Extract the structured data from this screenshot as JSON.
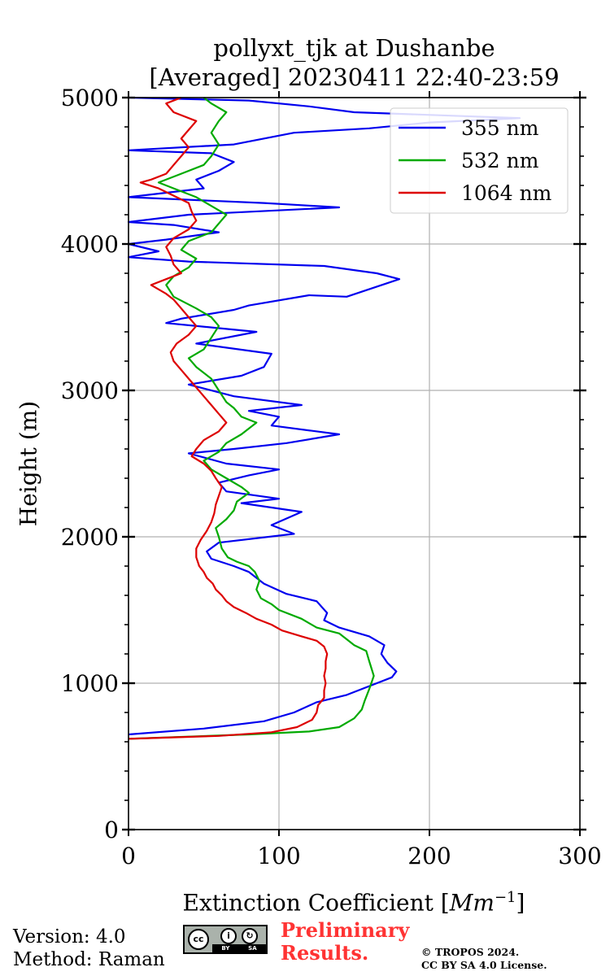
{
  "chart_data": {
    "type": "line",
    "title": [
      "pollyxt_tjk at Dushanbe",
      "[Averaged] 20230411 22:40-23:59"
    ],
    "xlabel": "Extinction Coefficient [",
    "xlabel_unit": "Mm",
    "xlabel_exp": "−1",
    "xlabel_close": "]",
    "ylabel": "Height (m)",
    "xlim": [
      0,
      300
    ],
    "ylim": [
      0,
      5000
    ],
    "xticks": [
      "0",
      "100",
      "200",
      "300"
    ],
    "yticks": [
      "0",
      "1000",
      "2000",
      "3000",
      "4000",
      "5000"
    ],
    "grid": true,
    "legend_position": "top-right",
    "series": [
      {
        "name": "355 nm",
        "color": "#0000ee",
        "points": [
          [
            0,
            650
          ],
          [
            50,
            690
          ],
          [
            90,
            740
          ],
          [
            110,
            800
          ],
          [
            125,
            870
          ],
          [
            145,
            920
          ],
          [
            160,
            980
          ],
          [
            175,
            1040
          ],
          [
            178,
            1080
          ],
          [
            172,
            1140
          ],
          [
            168,
            1200
          ],
          [
            170,
            1260
          ],
          [
            160,
            1320
          ],
          [
            140,
            1380
          ],
          [
            130,
            1430
          ],
          [
            132,
            1480
          ],
          [
            125,
            1560
          ],
          [
            105,
            1610
          ],
          [
            90,
            1680
          ],
          [
            80,
            1760
          ],
          [
            70,
            1800
          ],
          [
            55,
            1850
          ],
          [
            52,
            1900
          ],
          [
            60,
            1960
          ],
          [
            110,
            2020
          ],
          [
            95,
            2080
          ],
          [
            115,
            2170
          ],
          [
            75,
            2230
          ],
          [
            100,
            2260
          ],
          [
            65,
            2310
          ],
          [
            60,
            2370
          ],
          [
            80,
            2420
          ],
          [
            100,
            2460
          ],
          [
            65,
            2500
          ],
          [
            40,
            2570
          ],
          [
            70,
            2600
          ],
          [
            105,
            2640
          ],
          [
            140,
            2700
          ],
          [
            95,
            2760
          ],
          [
            100,
            2820
          ],
          [
            80,
            2860
          ],
          [
            115,
            2900
          ],
          [
            70,
            2960
          ],
          [
            40,
            3040
          ],
          [
            75,
            3100
          ],
          [
            90,
            3160
          ],
          [
            95,
            3250
          ],
          [
            45,
            3320
          ],
          [
            85,
            3400
          ],
          [
            25,
            3460
          ],
          [
            35,
            3490
          ],
          [
            70,
            3550
          ],
          [
            80,
            3580
          ],
          [
            120,
            3650
          ],
          [
            145,
            3640
          ],
          [
            180,
            3760
          ],
          [
            165,
            3800
          ],
          [
            130,
            3850
          ],
          [
            40,
            3880
          ],
          [
            0,
            3910
          ],
          [
            20,
            3950
          ],
          [
            0,
            4000
          ],
          [
            25,
            4030
          ],
          [
            60,
            4080
          ],
          [
            30,
            4130
          ],
          [
            0,
            4150
          ],
          [
            40,
            4200
          ],
          [
            140,
            4250
          ],
          [
            90,
            4280
          ],
          [
            0,
            4320
          ],
          [
            50,
            4380
          ],
          [
            45,
            4440
          ],
          [
            60,
            4500
          ],
          [
            70,
            4560
          ],
          [
            55,
            4620
          ],
          [
            0,
            4640
          ],
          [
            70,
            4680
          ],
          [
            110,
            4760
          ],
          [
            160,
            4790
          ],
          [
            200,
            4830
          ],
          [
            260,
            4860
          ],
          [
            150,
            4900
          ],
          [
            120,
            4940
          ],
          [
            80,
            4980
          ],
          [
            0,
            5000
          ]
        ]
      },
      {
        "name": "532 nm",
        "color": "#00aa00",
        "points": [
          [
            0,
            620
          ],
          [
            80,
            650
          ],
          [
            120,
            670
          ],
          [
            140,
            700
          ],
          [
            150,
            760
          ],
          [
            155,
            820
          ],
          [
            157,
            880
          ],
          [
            160,
            960
          ],
          [
            163,
            1050
          ],
          [
            160,
            1150
          ],
          [
            158,
            1220
          ],
          [
            150,
            1260
          ],
          [
            145,
            1300
          ],
          [
            140,
            1340
          ],
          [
            125,
            1380
          ],
          [
            115,
            1440
          ],
          [
            100,
            1500
          ],
          [
            95,
            1540
          ],
          [
            88,
            1580
          ],
          [
            85,
            1640
          ],
          [
            87,
            1700
          ],
          [
            84,
            1760
          ],
          [
            80,
            1800
          ],
          [
            72,
            1830
          ],
          [
            66,
            1860
          ],
          [
            62,
            1920
          ],
          [
            60,
            2000
          ],
          [
            58,
            2060
          ],
          [
            65,
            2120
          ],
          [
            70,
            2180
          ],
          [
            72,
            2240
          ],
          [
            80,
            2300
          ],
          [
            75,
            2340
          ],
          [
            65,
            2400
          ],
          [
            55,
            2460
          ],
          [
            50,
            2520
          ],
          [
            60,
            2580
          ],
          [
            65,
            2640
          ],
          [
            75,
            2700
          ],
          [
            85,
            2780
          ],
          [
            75,
            2820
          ],
          [
            70,
            2880
          ],
          [
            65,
            2920
          ],
          [
            60,
            3000
          ],
          [
            55,
            3080
          ],
          [
            45,
            3160
          ],
          [
            40,
            3220
          ],
          [
            50,
            3280
          ],
          [
            55,
            3360
          ],
          [
            60,
            3440
          ],
          [
            55,
            3500
          ],
          [
            45,
            3560
          ],
          [
            30,
            3640
          ],
          [
            25,
            3720
          ],
          [
            30,
            3780
          ],
          [
            40,
            3840
          ],
          [
            45,
            3900
          ],
          [
            35,
            3960
          ],
          [
            40,
            4020
          ],
          [
            55,
            4080
          ],
          [
            60,
            4140
          ],
          [
            65,
            4200
          ],
          [
            55,
            4260
          ],
          [
            45,
            4320
          ],
          [
            30,
            4380
          ],
          [
            20,
            4420
          ],
          [
            35,
            4480
          ],
          [
            50,
            4540
          ],
          [
            55,
            4600
          ],
          [
            60,
            4680
          ],
          [
            55,
            4760
          ],
          [
            60,
            4840
          ],
          [
            65,
            4900
          ],
          [
            55,
            4960
          ],
          [
            50,
            5000
          ]
        ]
      },
      {
        "name": "1064 nm",
        "color": "#dd0000",
        "points": [
          [
            0,
            620
          ],
          [
            60,
            640
          ],
          [
            95,
            665
          ],
          [
            112,
            700
          ],
          [
            122,
            750
          ],
          [
            125,
            800
          ],
          [
            126,
            850
          ],
          [
            130,
            900
          ],
          [
            130,
            950
          ],
          [
            131,
            1000
          ],
          [
            130,
            1050
          ],
          [
            131,
            1100
          ],
          [
            131,
            1150
          ],
          [
            132,
            1200
          ],
          [
            130,
            1250
          ],
          [
            125,
            1290
          ],
          [
            115,
            1320
          ],
          [
            102,
            1360
          ],
          [
            95,
            1400
          ],
          [
            85,
            1440
          ],
          [
            78,
            1480
          ],
          [
            70,
            1520
          ],
          [
            65,
            1560
          ],
          [
            62,
            1600
          ],
          [
            58,
            1640
          ],
          [
            56,
            1680
          ],
          [
            52,
            1720
          ],
          [
            50,
            1760
          ],
          [
            47,
            1800
          ],
          [
            45,
            1860
          ],
          [
            45,
            1920
          ],
          [
            48,
            1980
          ],
          [
            52,
            2040
          ],
          [
            55,
            2100
          ],
          [
            57,
            2160
          ],
          [
            58,
            2220
          ],
          [
            60,
            2280
          ],
          [
            62,
            2340
          ],
          [
            58,
            2400
          ],
          [
            55,
            2450
          ],
          [
            50,
            2500
          ],
          [
            42,
            2550
          ],
          [
            45,
            2600
          ],
          [
            50,
            2660
          ],
          [
            60,
            2720
          ],
          [
            65,
            2780
          ],
          [
            60,
            2840
          ],
          [
            55,
            2900
          ],
          [
            50,
            2960
          ],
          [
            45,
            3020
          ],
          [
            40,
            3080
          ],
          [
            35,
            3140
          ],
          [
            30,
            3200
          ],
          [
            28,
            3260
          ],
          [
            32,
            3320
          ],
          [
            40,
            3380
          ],
          [
            45,
            3440
          ],
          [
            40,
            3500
          ],
          [
            35,
            3560
          ],
          [
            30,
            3620
          ],
          [
            25,
            3660
          ],
          [
            15,
            3720
          ],
          [
            25,
            3760
          ],
          [
            35,
            3800
          ],
          [
            30,
            3860
          ],
          [
            28,
            3920
          ],
          [
            25,
            3980
          ],
          [
            30,
            4040
          ],
          [
            40,
            4100
          ],
          [
            45,
            4160
          ],
          [
            42,
            4220
          ],
          [
            40,
            4280
          ],
          [
            30,
            4330
          ],
          [
            20,
            4380
          ],
          [
            8,
            4420
          ],
          [
            15,
            4440
          ],
          [
            25,
            4480
          ],
          [
            30,
            4540
          ],
          [
            35,
            4600
          ],
          [
            40,
            4660
          ],
          [
            35,
            4720
          ],
          [
            40,
            4780
          ],
          [
            45,
            4840
          ],
          [
            30,
            4900
          ],
          [
            25,
            4960
          ],
          [
            35,
            5000
          ]
        ]
      }
    ]
  },
  "footer": {
    "version": "Version: 4.0",
    "method": "Method: Raman",
    "prelim_1": "Preliminary",
    "prelim_2": "Results.",
    "copyright_1": "© TROPOS 2024.",
    "copyright_2": "CC BY SA 4.0 License.",
    "cc_label": "cc",
    "cc_by": "BY",
    "cc_sa": "SA"
  }
}
